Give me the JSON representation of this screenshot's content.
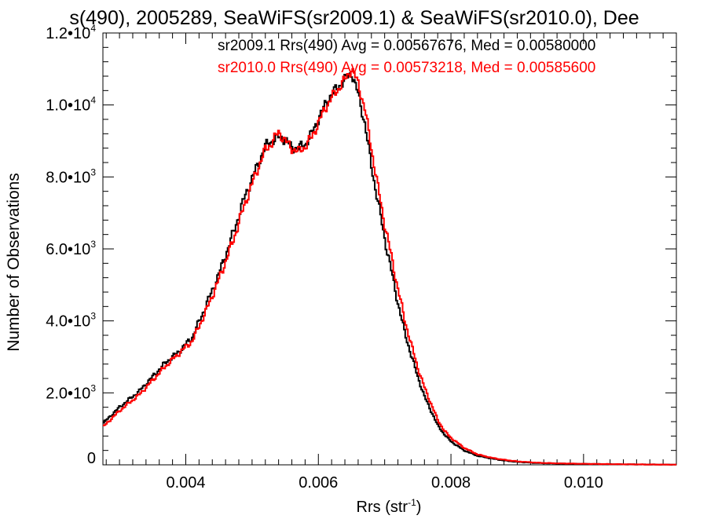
{
  "chart_data": {
    "type": "line",
    "title": "s(490), 2005289, SeaWiFS(sr2009.1) & SeaWiFS(sr2010.0), Dee",
    "xlabel_main": "Rrs (str",
    "xlabel_sup": "-1",
    "xlabel_tail": ")",
    "ylabel": "Number of Observations",
    "xlim": [
      0.00275,
      0.0114
    ],
    "ylim": [
      0,
      12000
    ],
    "x_ticks": [
      {
        "value": 0.004,
        "label": "0.004"
      },
      {
        "value": 0.006,
        "label": "0.006"
      },
      {
        "value": 0.008,
        "label": "0.008"
      },
      {
        "value": 0.01,
        "label": "0.010"
      }
    ],
    "y_ticks": [
      {
        "value": 0,
        "mant": "0",
        "exp": ""
      },
      {
        "value": 2000,
        "mant": "2.0•10",
        "exp": "3"
      },
      {
        "value": 4000,
        "mant": "4.0•10",
        "exp": "3"
      },
      {
        "value": 6000,
        "mant": "6.0•10",
        "exp": "3"
      },
      {
        "value": 8000,
        "mant": "8.0•10",
        "exp": "3"
      },
      {
        "value": 10000,
        "mant": "1.0•10",
        "exp": "4"
      },
      {
        "value": 12000,
        "mant": "1.2•10",
        "exp": "4"
      }
    ],
    "legend": [
      {
        "text": "sr2009.1 Rrs(490) Avg = 0.00567676, Med = 0.00580000",
        "color": "#000000"
      },
      {
        "text": "sr2010.0 Rrs(490) Avg = 0.00573218, Med = 0.00585600",
        "color": "#ff0000"
      }
    ],
    "series": [
      {
        "color": "#000000",
        "points": [
          [
            0.00275,
            1150
          ],
          [
            0.003,
            1600
          ],
          [
            0.0033,
            2050
          ],
          [
            0.0035,
            2450
          ],
          [
            0.0037,
            2850
          ],
          [
            0.0039,
            3150
          ],
          [
            0.0041,
            3550
          ],
          [
            0.0043,
            4400
          ],
          [
            0.0045,
            5300
          ],
          [
            0.0047,
            6350
          ],
          [
            0.0049,
            7500
          ],
          [
            0.0051,
            8400
          ],
          [
            0.0052,
            8850
          ],
          [
            0.0053,
            9000
          ],
          [
            0.0054,
            9100
          ],
          [
            0.0055,
            9050
          ],
          [
            0.0056,
            8800
          ],
          [
            0.0057,
            8800
          ],
          [
            0.0058,
            8900
          ],
          [
            0.0059,
            9200
          ],
          [
            0.006,
            9600
          ],
          [
            0.0061,
            10000
          ],
          [
            0.0062,
            10300
          ],
          [
            0.0063,
            10500
          ],
          [
            0.0064,
            10700
          ],
          [
            0.0065,
            10900
          ],
          [
            0.0066,
            10300
          ],
          [
            0.0067,
            9500
          ],
          [
            0.0068,
            8300
          ],
          [
            0.0069,
            7300
          ],
          [
            0.007,
            6300
          ],
          [
            0.0071,
            5400
          ],
          [
            0.0072,
            4500
          ],
          [
            0.0073,
            3700
          ],
          [
            0.0074,
            3050
          ],
          [
            0.0075,
            2450
          ],
          [
            0.0076,
            1900
          ],
          [
            0.0077,
            1500
          ],
          [
            0.0078,
            1100
          ],
          [
            0.0079,
            850
          ],
          [
            0.008,
            650
          ],
          [
            0.0082,
            400
          ],
          [
            0.0084,
            250
          ],
          [
            0.0086,
            180
          ],
          [
            0.0088,
            120
          ],
          [
            0.009,
            80
          ],
          [
            0.0093,
            50
          ],
          [
            0.0096,
            35
          ],
          [
            0.01,
            25
          ],
          [
            0.0105,
            15
          ],
          [
            0.011,
            8
          ],
          [
            0.0114,
            5
          ]
        ]
      },
      {
        "color": "#ff0000",
        "points": [
          [
            0.00275,
            1050
          ],
          [
            0.003,
            1500
          ],
          [
            0.0033,
            1950
          ],
          [
            0.0035,
            2350
          ],
          [
            0.0037,
            2750
          ],
          [
            0.0039,
            3100
          ],
          [
            0.0041,
            3450
          ],
          [
            0.0043,
            4250
          ],
          [
            0.0045,
            5150
          ],
          [
            0.0047,
            6150
          ],
          [
            0.0049,
            7300
          ],
          [
            0.0051,
            8300
          ],
          [
            0.0052,
            8750
          ],
          [
            0.0053,
            8950
          ],
          [
            0.0054,
            9250
          ],
          [
            0.0055,
            9000
          ],
          [
            0.0056,
            8800
          ],
          [
            0.0057,
            8700
          ],
          [
            0.0058,
            8850
          ],
          [
            0.0059,
            9100
          ],
          [
            0.006,
            9500
          ],
          [
            0.0061,
            9900
          ],
          [
            0.0062,
            10200
          ],
          [
            0.0063,
            10450
          ],
          [
            0.0064,
            10700
          ],
          [
            0.0065,
            11000
          ],
          [
            0.0066,
            10600
          ],
          [
            0.0067,
            9900
          ],
          [
            0.0068,
            8800
          ],
          [
            0.0069,
            7700
          ],
          [
            0.007,
            6700
          ],
          [
            0.0071,
            5800
          ],
          [
            0.0072,
            4900
          ],
          [
            0.0073,
            4050
          ],
          [
            0.0074,
            3350
          ],
          [
            0.0075,
            2700
          ],
          [
            0.0076,
            2150
          ],
          [
            0.0077,
            1700
          ],
          [
            0.0078,
            1250
          ],
          [
            0.0079,
            950
          ],
          [
            0.008,
            750
          ],
          [
            0.0082,
            470
          ],
          [
            0.0084,
            290
          ],
          [
            0.0086,
            200
          ],
          [
            0.0088,
            140
          ],
          [
            0.009,
            95
          ],
          [
            0.0093,
            60
          ],
          [
            0.0096,
            40
          ],
          [
            0.01,
            28
          ],
          [
            0.0105,
            17
          ],
          [
            0.011,
            9
          ],
          [
            0.0114,
            5
          ]
        ]
      }
    ]
  }
}
